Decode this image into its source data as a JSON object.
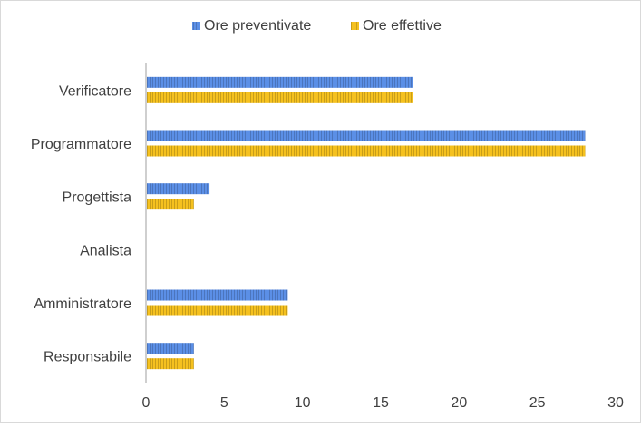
{
  "chart_data": {
    "type": "bar",
    "orientation": "horizontal",
    "categories": [
      "Verificatore",
      "Programmatore",
      "Progettista",
      "Analista",
      "Amministratore",
      "Responsabile"
    ],
    "series": [
      {
        "name": "Ore preventivate",
        "color": "#5b8fe6",
        "pattern": "vertical-stripes",
        "values": [
          17,
          28,
          4,
          0,
          9,
          3
        ]
      },
      {
        "name": "Ore effettive",
        "color": "#f5c11f",
        "pattern": "vertical-stripes",
        "values": [
          17,
          28,
          3,
          0,
          9,
          3
        ]
      }
    ],
    "xlim": [
      0,
      30
    ],
    "xticks": [
      "0",
      "5",
      "10",
      "15",
      "20",
      "25",
      "30"
    ],
    "legend": "top",
    "grid": false
  }
}
